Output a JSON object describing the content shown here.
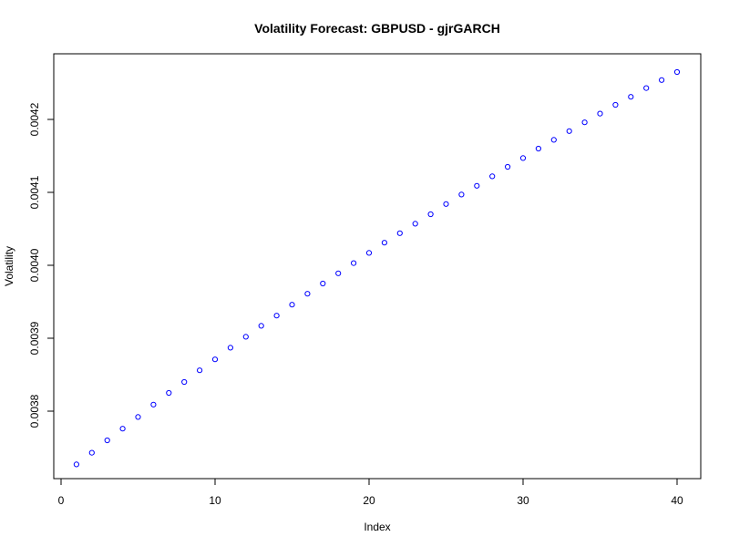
{
  "chart_data": {
    "type": "scatter",
    "title": "Volatility Forecast: GBPUSD - gjrGARCH",
    "xlabel": "Index",
    "ylabel": "Volatility",
    "xlim": [
      0,
      42.3
    ],
    "ylim": [
      0.003727,
      0.004265
    ],
    "xticks": [
      0,
      10,
      20,
      30,
      40
    ],
    "yticks": [
      0.0038,
      0.0039,
      0.004,
      0.0041,
      0.0042
    ],
    "xtick_labels": [
      "0",
      "10",
      "20",
      "30",
      "40"
    ],
    "ytick_labels": [
      "0.0038",
      "0.0039",
      "0.0040",
      "0.0041",
      "0.0042"
    ],
    "grid": false,
    "marker": "open-circle",
    "point_color": "#0000ff",
    "x": [
      1,
      2,
      3,
      4,
      5,
      6,
      7,
      8,
      9,
      10,
      11,
      12,
      13,
      14,
      15,
      16,
      17,
      18,
      19,
      20,
      21,
      22,
      23,
      24,
      25,
      26,
      27,
      28,
      29,
      30,
      31,
      32,
      33,
      34,
      35,
      36,
      37,
      38,
      39,
      40
    ],
    "values": [
      0.003727,
      0.003743,
      0.00376,
      0.003776,
      0.003792,
      0.003809,
      0.003825,
      0.00384,
      0.003856,
      0.003871,
      0.003887,
      0.003902,
      0.003917,
      0.003931,
      0.003946,
      0.003961,
      0.003975,
      0.003989,
      0.004003,
      0.004017,
      0.004031,
      0.004044,
      0.004057,
      0.00407,
      0.004084,
      0.004097,
      0.004109,
      0.004122,
      0.004135,
      0.004147,
      0.00416,
      0.004172,
      0.004184,
      0.004196,
      0.004208,
      0.00422,
      0.004231,
      0.004243,
      0.004254,
      0.004265
    ]
  }
}
